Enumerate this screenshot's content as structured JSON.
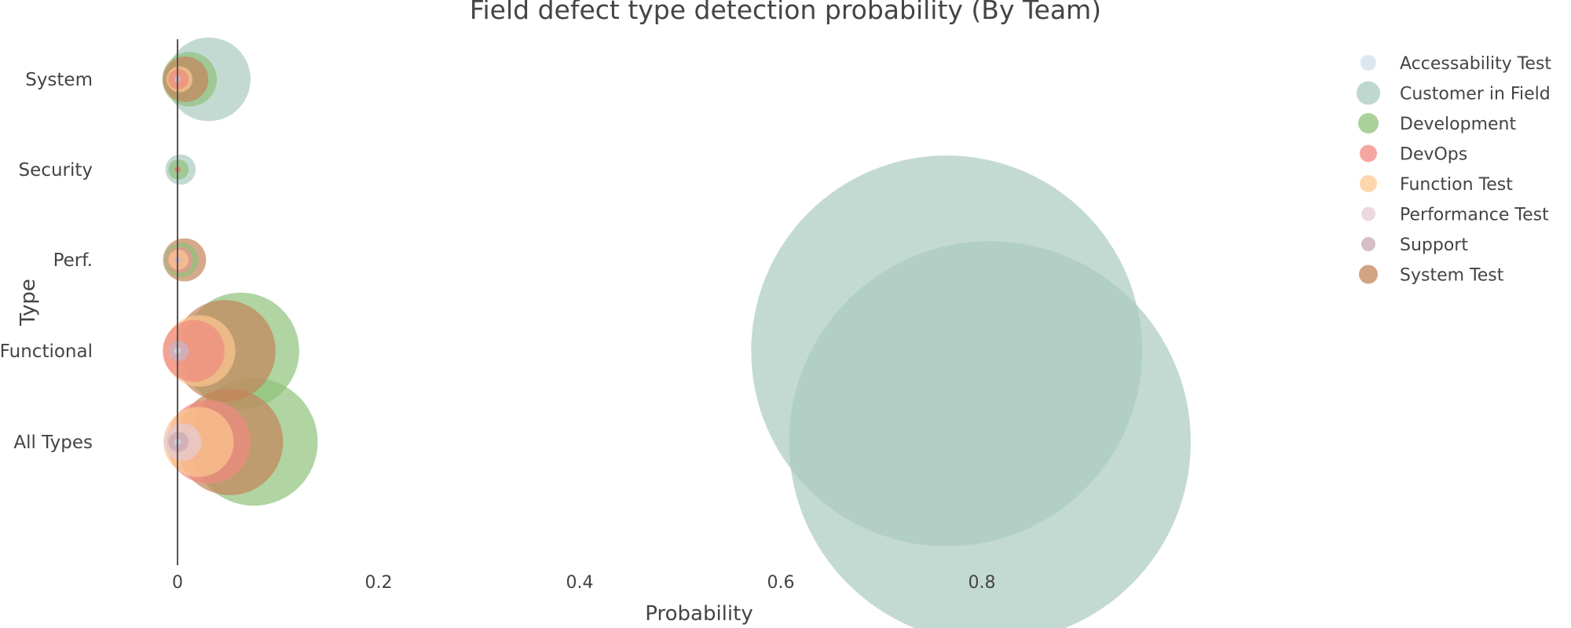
{
  "chart_data": {
    "type": "scatter",
    "title": "Field defect type detection probability (By Team)",
    "xlabel": "Probability",
    "ylabel": "Type",
    "xlim": [
      0,
      1.05
    ],
    "x_ticks": [
      0,
      0.2,
      0.4,
      0.6,
      0.8
    ],
    "x_tick_labels": [
      "0",
      "0.2",
      "0.4",
      "0.6",
      "0.8"
    ],
    "categories": [
      "System",
      "Security",
      "Perf.",
      "Functional",
      "All Types"
    ],
    "legend_position": "top-right",
    "grid": false,
    "series": [
      {
        "name": "Accessability Test",
        "color": "#cfe0ea",
        "points": [
          {
            "category": "System",
            "x": 0.0
          },
          {
            "category": "Security",
            "x": 0.0
          },
          {
            "category": "Perf.",
            "x": 0.0
          },
          {
            "category": "Functional",
            "x": 0.0
          },
          {
            "category": "All Types",
            "x": 0.0
          }
        ]
      },
      {
        "name": "Customer in Field",
        "color": "#a9cbbf",
        "points": [
          {
            "category": "System",
            "x": 0.031
          },
          {
            "category": "Security",
            "x": 0.003
          },
          {
            "category": "Perf.",
            "x": 0.002
          },
          {
            "category": "Functional",
            "x": 0.765
          },
          {
            "category": "All Types",
            "x": 0.808
          }
        ]
      },
      {
        "name": "Development",
        "color": "#8ec27a",
        "points": [
          {
            "category": "System",
            "x": 0.012
          },
          {
            "category": "Security",
            "x": 0.001
          },
          {
            "category": "Perf.",
            "x": 0.004
          },
          {
            "category": "Functional",
            "x": 0.063
          },
          {
            "category": "All Types",
            "x": 0.076
          }
        ]
      },
      {
        "name": "DevOps",
        "color": "#f08a80",
        "points": [
          {
            "category": "System",
            "x": 0.001
          },
          {
            "category": "Security",
            "x": 0.0
          },
          {
            "category": "Perf.",
            "x": 0.002
          },
          {
            "category": "Functional",
            "x": 0.016
          },
          {
            "category": "All Types",
            "x": 0.031
          }
        ]
      },
      {
        "name": "Function Test",
        "color": "#fdc890",
        "points": [
          {
            "category": "System",
            "x": 0.002
          },
          {
            "category": "Security",
            "x": 0.0
          },
          {
            "category": "Perf.",
            "x": 0.001
          },
          {
            "category": "Functional",
            "x": 0.022
          },
          {
            "category": "All Types",
            "x": 0.021
          }
        ]
      },
      {
        "name": "Performance Test",
        "color": "#e6ccd6",
        "points": [
          {
            "category": "System",
            "x": 0.0
          },
          {
            "category": "Security",
            "x": 0.0
          },
          {
            "category": "Perf.",
            "x": 0.0
          },
          {
            "category": "Functional",
            "x": 0.001
          },
          {
            "category": "All Types",
            "x": 0.005
          }
        ]
      },
      {
        "name": "Support",
        "color": "#c7a8b5",
        "points": [
          {
            "category": "System",
            "x": 0.0
          },
          {
            "category": "Security",
            "x": 0.0
          },
          {
            "category": "Perf.",
            "x": 0.0
          },
          {
            "category": "Functional",
            "x": 0.001
          },
          {
            "category": "All Types",
            "x": 0.001
          }
        ]
      },
      {
        "name": "System Test",
        "color": "#c4845a",
        "points": [
          {
            "category": "System",
            "x": 0.008
          },
          {
            "category": "Security",
            "x": 0.0
          },
          {
            "category": "Perf.",
            "x": 0.007
          },
          {
            "category": "Functional",
            "x": 0.047
          },
          {
            "category": "All Types",
            "x": 0.052
          }
        ]
      }
    ]
  }
}
